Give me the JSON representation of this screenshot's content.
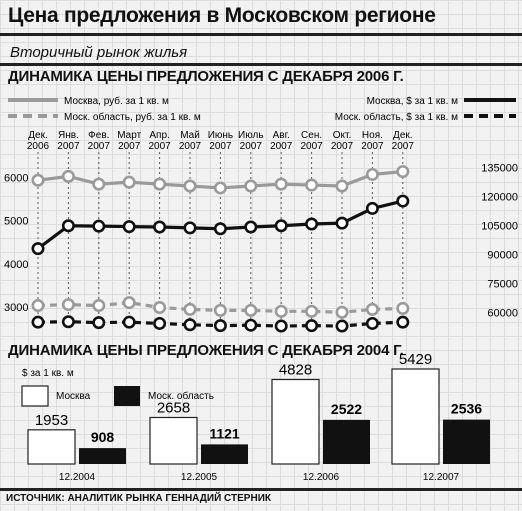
{
  "header": {
    "title": "Цена предложения в Московском регионе",
    "subtitle": "Вторичный рынок жилья"
  },
  "chart_data": [
    {
      "type": "line",
      "title": "ДИНАМИКА ЦЕНЫ ПРЕДЛОЖЕНИЯ С ДЕКАБРЯ 2006 Г.",
      "categories": [
        {
          "m": "Дек.",
          "y": "2006"
        },
        {
          "m": "Янв.",
          "y": "2007"
        },
        {
          "m": "Фев.",
          "y": "2007"
        },
        {
          "m": "Март",
          "y": "2007"
        },
        {
          "m": "Апр.",
          "y": "2007"
        },
        {
          "m": "Май",
          "y": "2007"
        },
        {
          "m": "Июнь",
          "y": "2007"
        },
        {
          "m": "Июль",
          "y": "2007"
        },
        {
          "m": "Авг.",
          "y": "2007"
        },
        {
          "m": "Сен.",
          "y": "2007"
        },
        {
          "m": "Окт.",
          "y": "2007"
        },
        {
          "m": "Ноя.",
          "y": "2007"
        },
        {
          "m": "Дек.",
          "y": "2007"
        }
      ],
      "left_axis": {
        "ticks": [
          "3000",
          "4000",
          "5000",
          "6000"
        ],
        "range": [
          2700,
          6400
        ]
      },
      "right_axis": {
        "ticks": [
          "60000",
          "75000",
          "90000",
          "105000",
          "120000",
          "135000"
        ],
        "range": [
          56000,
          139000
        ]
      },
      "series": [
        {
          "name": "Москва, $ за 1 кв. м",
          "axis": "left",
          "color": "#111111",
          "dashed": false,
          "values": [
            4350,
            4880,
            4870,
            4860,
            4850,
            4830,
            4810,
            4850,
            4880,
            4920,
            4940,
            5280,
            5450
          ]
        },
        {
          "name": "Моск. область, $ за 1 кв. м",
          "axis": "left",
          "color": "#111111",
          "dashed": true,
          "values": [
            2650,
            2660,
            2640,
            2650,
            2620,
            2590,
            2570,
            2580,
            2560,
            2570,
            2560,
            2620,
            2650
          ]
        },
        {
          "name": "Москва, руб. за 1 кв. м",
          "axis": "right",
          "color": "#9a9a9a",
          "dashed": false,
          "values": [
            128500,
            130500,
            126500,
            127500,
            126500,
            125500,
            124500,
            125500,
            126500,
            126000,
            125500,
            131500,
            133000
          ]
        },
        {
          "name": "Моск. область, руб. за 1 кв. м",
          "axis": "right",
          "color": "#9a9a9a",
          "dashed": true,
          "values": [
            63500,
            64000,
            63500,
            65000,
            62500,
            61500,
            61000,
            61000,
            60500,
            60500,
            60000,
            61500,
            62000
          ]
        }
      ]
    },
    {
      "type": "bar",
      "title": "ДИНАМИКА ЦЕНЫ ПРЕДЛОЖЕНИЯ С ДЕКАБРЯ 2004 Г.",
      "unit_label": "$ за 1 кв. м",
      "categories": [
        "12.2004",
        "12.2005",
        "12.2006",
        "12.2007"
      ],
      "series": [
        {
          "name": "Москва",
          "values": [
            1953,
            2658,
            4828,
            5429
          ]
        },
        {
          "name": "Моск. область",
          "values": [
            908,
            1121,
            2522,
            2536
          ]
        }
      ],
      "colors": {
        "moscow_fill": "#ffffff",
        "oblast_fill": "#111111"
      }
    }
  ],
  "footer": {
    "source": "Источник: аналитик рынка Геннадий Стерник"
  }
}
